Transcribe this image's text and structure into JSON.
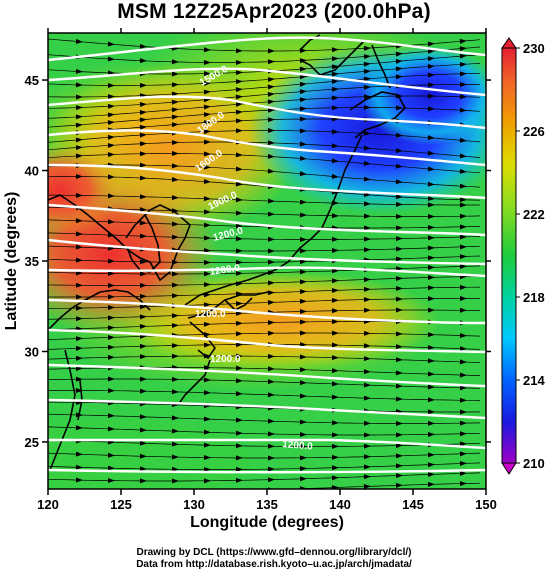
{
  "title": "MSM 12Z25Apr2023 (200.0hPa)",
  "axes": {
    "x_label": "Longitude (degrees)",
    "y_label": "Latitude  (degrees)",
    "x_ticks": [
      "120",
      "125",
      "130",
      "135",
      "140",
      "145",
      "150"
    ],
    "y_ticks": [
      "25",
      "30",
      "35",
      "40",
      "45"
    ],
    "x_range": [
      120,
      150
    ],
    "y_range": [
      22.4,
      47.6
    ]
  },
  "colorbar": {
    "labels": [
      "230",
      "226",
      "222",
      "218",
      "214",
      "210"
    ],
    "range": [
      210,
      230
    ],
    "colors": [
      "#a000c8",
      "#1a1ae0",
      "#0078ff",
      "#00c8ff",
      "#00d2a0",
      "#1ecc3c",
      "#8cdc1e",
      "#dcdc00",
      "#f0a000",
      "#f06428",
      "#e61e32"
    ]
  },
  "contour_labels": [
    "1500.0",
    "1800.0",
    "1600.0",
    "1900.0",
    "1200.0",
    "1200.0",
    "1200.0",
    "1200.0",
    "1200.0"
  ],
  "credits": {
    "line1": "Drawing by DCL (https://www.gfd–dennou.org/library/dcl/)",
    "line2": "Data from http://database.rish.kyoto–u.ac.jp/arch/jmadata/"
  }
}
